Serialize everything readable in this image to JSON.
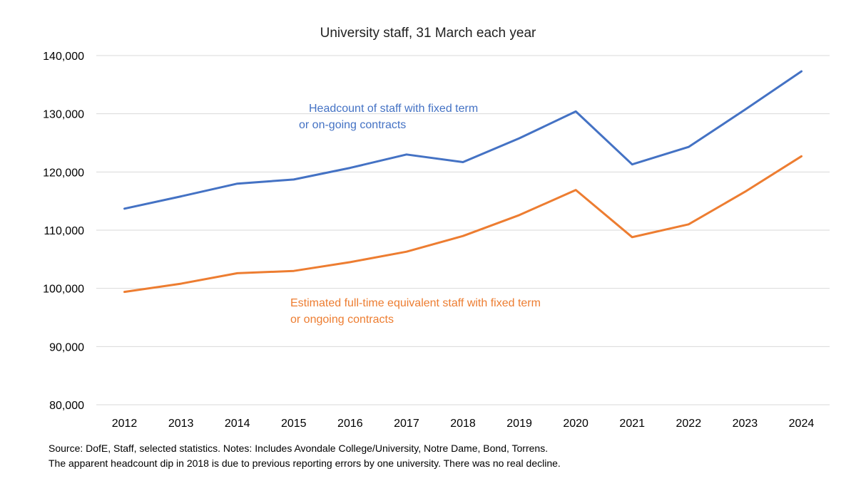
{
  "chart_data": {
    "type": "line",
    "title": "University staff, 31 March each year",
    "xlabel": "",
    "ylabel": "",
    "ylim": [
      80000,
      140000
    ],
    "yticks": [
      80000,
      90000,
      100000,
      110000,
      120000,
      130000,
      140000
    ],
    "ytick_labels": [
      "80,000",
      "90,000",
      "100,000",
      "110,000",
      "120,000",
      "130,000",
      "140,000"
    ],
    "categories": [
      "2012",
      "2013",
      "2014",
      "2015",
      "2016",
      "2017",
      "2018",
      "2019",
      "2020",
      "2021",
      "2022",
      "2023",
      "2024"
    ],
    "grid": true,
    "series": [
      {
        "name": "Headcount of staff with fixed term or on-going contracts",
        "label_lines": [
          "Headcount of staff with fixed term",
          "or on-going contracts"
        ],
        "color": "#4472C4",
        "values": [
          113700,
          115800,
          118000,
          118700,
          120700,
          123000,
          121700,
          125800,
          130400,
          121300,
          124300,
          130700,
          137300
        ]
      },
      {
        "name": "Estimated full-time equivalent staff with fixed term or ongoing contracts",
        "label_lines": [
          "Estimated full-time equivalent staff with fixed term",
          "or ongoing contracts"
        ],
        "color": "#ED7D31",
        "values": [
          99400,
          100800,
          102600,
          103000,
          104500,
          106300,
          109000,
          112600,
          116900,
          108800,
          111000,
          116600,
          122700
        ]
      }
    ]
  },
  "footnotes": {
    "line1": "Source: DofE, Staff, selected statistics. Notes: Includes Avondale College/University, Notre Dame, Bond, Torrens.",
    "line2": "The apparent headcount dip in 2018 is due to previous reporting errors by one university. There was no real decline."
  },
  "colors": {
    "grid": "#D9D9D9",
    "text": "#000000"
  }
}
